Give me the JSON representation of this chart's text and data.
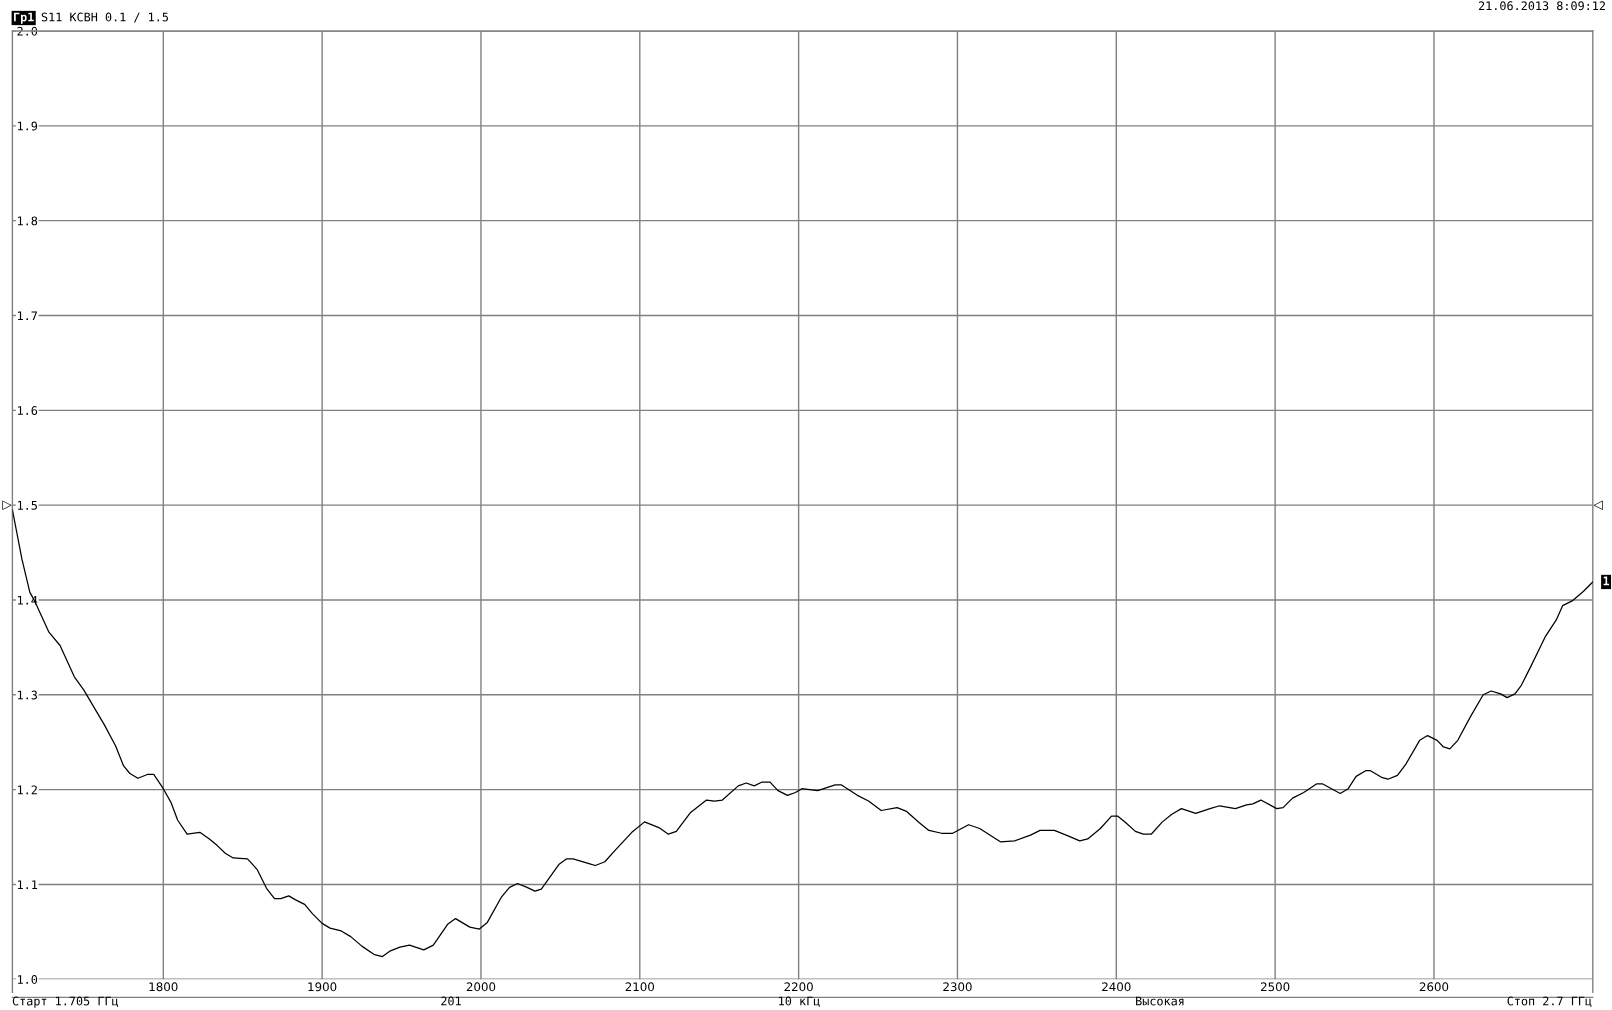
{
  "chart_data": {
    "type": "line",
    "title": "S11 КСВН 0.1 / 1.5",
    "annotations": [
      "Гр1",
      "21.06.2013 8:09:12",
      "Старт 1.705 ГГц",
      "201",
      "10 кГц",
      "Высокая",
      "Стоп 2.7 ГГц",
      "▷",
      "◁",
      "1"
    ],
    "x": [
      1705,
      1711,
      1716,
      1719,
      1728,
      1735,
      1744,
      1750,
      1763,
      1770,
      1775,
      1779,
      1784,
      1790,
      1794,
      1800,
      1805,
      1809,
      1815,
      1823,
      1829,
      1834,
      1839,
      1844,
      1853,
      1859,
      1865,
      1870,
      1874,
      1879,
      1883,
      1889,
      1894,
      1900,
      1905,
      1912,
      1918,
      1925,
      1933,
      1938,
      1943,
      1949,
      1955,
      1964,
      1970,
      1979,
      1984,
      1993,
      1999,
      2004,
      2013,
      2018,
      2023,
      2029,
      2034,
      2038,
      2049,
      2054,
      2058,
      2068,
      2072,
      2078,
      2085,
      2095,
      2103,
      2112,
      2118,
      2123,
      2132,
      2142,
      2147,
      2152,
      2162,
      2167,
      2172,
      2177,
      2182,
      2187,
      2193,
      2198,
      2202,
      2207,
      2212,
      2223,
      2227,
      2237,
      2244,
      2252,
      2262,
      2268,
      2276,
      2282,
      2290,
      2297,
      2307,
      2314,
      2327,
      2336,
      2346,
      2352,
      2361,
      2370,
      2377,
      2382,
      2390,
      2397,
      2401,
      2406,
      2412,
      2417,
      2422,
      2429,
      2435,
      2441,
      2450,
      2459,
      2465,
      2475,
      2482,
      2486,
      2491,
      2501,
      2505,
      2511,
      2518,
      2526,
      2530,
      2541,
      2546,
      2551,
      2557,
      2560,
      2567,
      2571,
      2577,
      2582,
      2591,
      2596,
      2602,
      2606,
      2610,
      2615,
      2623,
      2631,
      2636,
      2642,
      2646,
      2651,
      2655,
      2661,
      2670,
      2677,
      2681,
      2687,
      2694,
      2700
    ],
    "series": [
      {
        "color": "#000000",
        "values": [
          1.495,
          1.443,
          1.408,
          1.399,
          1.366,
          1.352,
          1.319,
          1.305,
          1.268,
          1.246,
          1.225,
          1.217,
          1.212,
          1.216,
          1.216,
          1.201,
          1.186,
          1.168,
          1.153,
          1.155,
          1.148,
          1.141,
          1.133,
          1.128,
          1.127,
          1.116,
          1.096,
          1.085,
          1.085,
          1.088,
          1.084,
          1.079,
          1.069,
          1.059,
          1.054,
          1.051,
          1.045,
          1.035,
          1.026,
          1.024,
          1.03,
          1.034,
          1.036,
          1.031,
          1.036,
          1.058,
          1.064,
          1.055,
          1.053,
          1.06,
          1.087,
          1.097,
          1.101,
          1.097,
          1.093,
          1.095,
          1.121,
          1.127,
          1.127,
          1.122,
          1.12,
          1.124,
          1.137,
          1.155,
          1.166,
          1.16,
          1.153,
          1.156,
          1.176,
          1.189,
          1.188,
          1.189,
          1.204,
          1.207,
          1.204,
          1.208,
          1.208,
          1.199,
          1.194,
          1.197,
          1.201,
          1.2,
          1.199,
          1.205,
          1.205,
          1.194,
          1.188,
          1.178,
          1.181,
          1.177,
          1.165,
          1.157,
          1.154,
          1.154,
          1.163,
          1.159,
          1.145,
          1.146,
          1.152,
          1.157,
          1.157,
          1.151,
          1.146,
          1.148,
          1.159,
          1.172,
          1.172,
          1.165,
          1.156,
          1.153,
          1.153,
          1.166,
          1.174,
          1.18,
          1.175,
          1.18,
          1.183,
          1.18,
          1.184,
          1.185,
          1.189,
          1.18,
          1.181,
          1.191,
          1.197,
          1.206,
          1.206,
          1.196,
          1.201,
          1.214,
          1.22,
          1.22,
          1.213,
          1.211,
          1.215,
          1.226,
          1.252,
          1.257,
          1.252,
          1.245,
          1.243,
          1.252,
          1.277,
          1.3,
          1.304,
          1.301,
          1.297,
          1.301,
          1.31,
          1.33,
          1.361,
          1.379,
          1.394,
          1.399,
          1.409,
          1.419
        ]
      }
    ],
    "xlim": [
      1705,
      2700
    ],
    "xticks": [
      1800,
      1900,
      2000,
      2100,
      2200,
      2300,
      2400,
      2500,
      2600
    ],
    "ylim": [
      1.0,
      2.0
    ],
    "yticks": [
      {
        "value": 1.0,
        "label": "1.0"
      },
      1.1,
      1.2,
      1.3,
      1.4,
      1.5,
      1.6,
      1.7,
      1.8,
      1.9,
      {
        "value": 2.0,
        "label": "2.0"
      }
    ],
    "grid": true
  }
}
